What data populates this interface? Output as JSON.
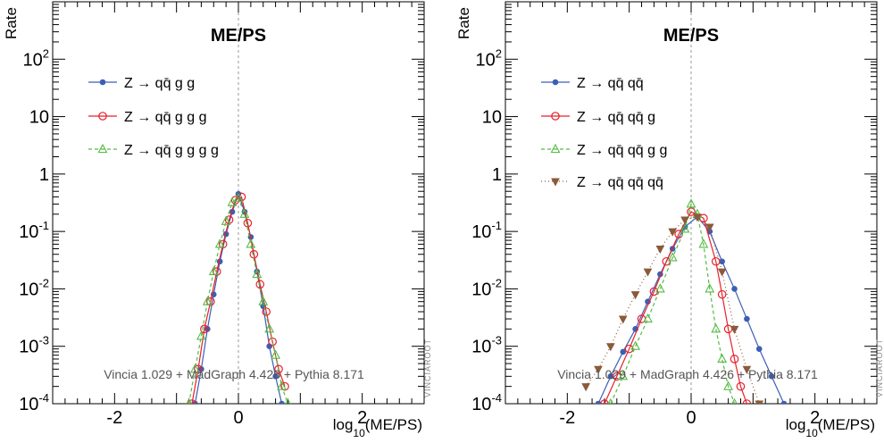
{
  "chart_data": [
    {
      "type": "line",
      "title": "ME/PS",
      "xlabel_main": "log",
      "xlabel_sub": "10",
      "xlabel_rest": "(ME/PS)",
      "ylabel": "Rate",
      "xlim": [
        -3,
        3
      ],
      "ylim": [
        0.0001,
        1000
      ],
      "log_y": true,
      "x_ticks": [
        "-2",
        "0",
        "2"
      ],
      "y_ticks": [
        {
          "base": "10",
          "exp": "2"
        },
        {
          "base": "10",
          "exp": ""
        },
        {
          "base": "1",
          "exp": ""
        },
        {
          "base": "10",
          "exp": "-1"
        },
        {
          "base": "10",
          "exp": "-2"
        },
        {
          "base": "10",
          "exp": "-3"
        },
        {
          "base": "10",
          "exp": "-4"
        }
      ],
      "annotation": "Vincia 1.029 + MadGraph 4.426 +  Pythia 8.171",
      "watermark": "VINCIAROOT",
      "series": [
        {
          "name": "Z → qq̄ g g",
          "color": "#3b5fb5",
          "marker": "dot",
          "dash": "",
          "x": [
            -0.7,
            -0.6,
            -0.5,
            -0.4,
            -0.3,
            -0.2,
            -0.1,
            0.0,
            0.1,
            0.2,
            0.3,
            0.4,
            0.5,
            0.6,
            0.7
          ],
          "y": [
            0.0001,
            0.0004,
            0.002,
            0.008,
            0.03,
            0.09,
            0.22,
            0.45,
            0.22,
            0.08,
            0.02,
            0.005,
            0.001,
            0.0003,
            0.0001
          ]
        },
        {
          "name": "Z → qq̄ g g g",
          "color": "#e8202a",
          "marker": "circle",
          "dash": "",
          "x": [
            -0.75,
            -0.65,
            -0.55,
            -0.45,
            -0.35,
            -0.25,
            -0.15,
            -0.05,
            0.05,
            0.15,
            0.25,
            0.35,
            0.45,
            0.55,
            0.65,
            0.75
          ],
          "y": [
            0.0001,
            0.0004,
            0.002,
            0.006,
            0.02,
            0.06,
            0.16,
            0.35,
            0.4,
            0.14,
            0.04,
            0.012,
            0.004,
            0.0012,
            0.0004,
            0.0002
          ]
        },
        {
          "name": "Z → qq̄ g g g g",
          "color": "#55bb44",
          "marker": "triangle",
          "dash": "4,3",
          "x": [
            -0.8,
            -0.7,
            -0.6,
            -0.5,
            -0.4,
            -0.3,
            -0.2,
            -0.1,
            0.0,
            0.1,
            0.2,
            0.3,
            0.4,
            0.5,
            0.6,
            0.7,
            0.8
          ],
          "y": [
            0.0001,
            0.0004,
            0.0015,
            0.006,
            0.02,
            0.06,
            0.15,
            0.32,
            0.38,
            0.2,
            0.06,
            0.018,
            0.006,
            0.002,
            0.0007,
            0.0002,
            0.0001
          ]
        }
      ]
    },
    {
      "type": "line",
      "title": "ME/PS",
      "xlabel_main": "log",
      "xlabel_sub": "10",
      "xlabel_rest": "(ME/PS)",
      "ylabel": "Rate",
      "xlim": [
        -3,
        3
      ],
      "ylim": [
        0.0001,
        1000
      ],
      "log_y": true,
      "x_ticks": [
        "-2",
        "0",
        "2"
      ],
      "y_ticks": [
        {
          "base": "10",
          "exp": "2"
        },
        {
          "base": "10",
          "exp": ""
        },
        {
          "base": "1",
          "exp": ""
        },
        {
          "base": "10",
          "exp": "-1"
        },
        {
          "base": "10",
          "exp": "-2"
        },
        {
          "base": "10",
          "exp": "-3"
        },
        {
          "base": "10",
          "exp": "-4"
        }
      ],
      "annotation": "Vincia 1.029 + MadGraph 4.426 +  Pythia 8.171",
      "watermark": "VINCIAROOT",
      "series": [
        {
          "name": "Z → qq̄ qq̄",
          "color": "#3b5fb5",
          "marker": "dot",
          "dash": "",
          "x": [
            -1.5,
            -1.3,
            -1.1,
            -0.9,
            -0.7,
            -0.5,
            -0.3,
            -0.1,
            0.1,
            0.3,
            0.5,
            0.7,
            0.9,
            1.1,
            1.3,
            1.5
          ],
          "y": [
            0.0001,
            0.0003,
            0.0008,
            0.002,
            0.006,
            0.018,
            0.05,
            0.12,
            0.18,
            0.1,
            0.03,
            0.01,
            0.003,
            0.0009,
            0.0003,
            0.0001
          ]
        },
        {
          "name": "Z → qq̄ qq̄ g",
          "color": "#e8202a",
          "marker": "circle",
          "dash": "",
          "x": [
            -1.4,
            -1.2,
            -1.0,
            -0.8,
            -0.6,
            -0.4,
            -0.2,
            0.0,
            0.2,
            0.4,
            0.5,
            0.6,
            0.7,
            0.8,
            0.9
          ],
          "y": [
            0.0001,
            0.0003,
            0.0009,
            0.003,
            0.009,
            0.03,
            0.09,
            0.22,
            0.17,
            0.03,
            0.008,
            0.002,
            0.0006,
            0.0002,
            0.0001
          ]
        },
        {
          "name": "Z → qq̄ qq̄ g g",
          "color": "#55bb44",
          "marker": "triangle",
          "dash": "4,3",
          "x": [
            -1.3,
            -1.1,
            -0.9,
            -0.7,
            -0.5,
            -0.3,
            -0.1,
            0.0,
            0.1,
            0.2,
            0.3,
            0.4,
            0.5,
            0.6,
            0.7
          ],
          "y": [
            0.0001,
            0.0003,
            0.001,
            0.003,
            0.01,
            0.035,
            0.11,
            0.3,
            0.2,
            0.06,
            0.01,
            0.002,
            0.0006,
            0.0002,
            0.0001
          ]
        },
        {
          "name": "Z → qq̄ qq̄ qq̄",
          "color": "#8a5a3a",
          "marker": "tri-down",
          "dash": "1,3",
          "x": [
            -1.7,
            -1.5,
            -1.3,
            -1.1,
            -0.9,
            -0.7,
            -0.5,
            -0.3,
            -0.1,
            0.1,
            0.3,
            0.5,
            0.7,
            0.9,
            1.1
          ],
          "y": [
            0.0002,
            0.0004,
            0.001,
            0.003,
            0.008,
            0.02,
            0.05,
            0.1,
            0.16,
            0.18,
            0.12,
            0.02,
            0.002,
            0.0004,
            0.0001
          ]
        }
      ]
    }
  ]
}
